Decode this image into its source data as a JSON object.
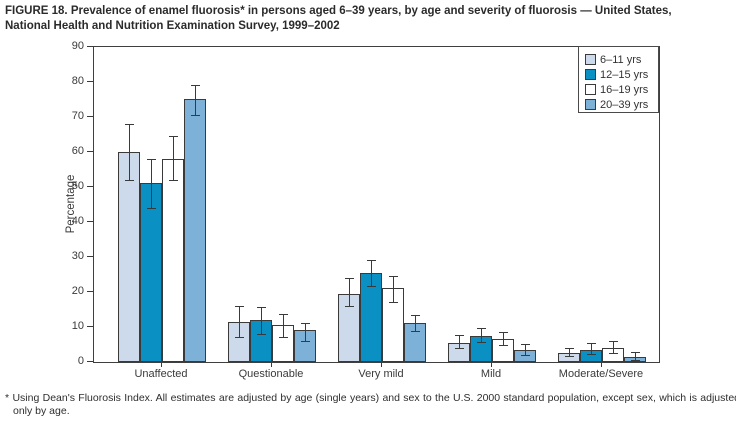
{
  "header": {
    "title_line1": "FIGURE 18. Prevalence of enamel fluorosis* in persons aged 6–39 years, by age and severity of fluorosis — United States,",
    "title_line2": "National Health and Nutrition Examination Survey, 1999–2002"
  },
  "chart_data": {
    "type": "bar",
    "title": "FIGURE 18. Prevalence of enamel fluorosis* in persons aged 6–39 years, by age and severity of fluorosis — United States, National Health and Nutrition Examination Survey, 1999–2002",
    "categories": [
      "Unaffected",
      "Questionable",
      "Very mild",
      "Mild",
      "Moderate/Severe"
    ],
    "series": [
      {
        "name": "6–11 yrs",
        "color": "#ccdaec",
        "values": [
          60,
          11.5,
          19.5,
          5.5,
          2.5
        ],
        "err_low": [
          52,
          7,
          16,
          4,
          1.5
        ],
        "err_high": [
          68,
          16,
          24,
          7.5,
          4
        ]
      },
      {
        "name": "12–15 yrs",
        "color": "#0a90c2",
        "values": [
          51,
          12,
          25.5,
          7.5,
          3.4
        ],
        "err_low": [
          44,
          8,
          21.5,
          5.7,
          2.1
        ],
        "err_high": [
          58,
          15.5,
          29,
          9.5,
          5.2
        ]
      },
      {
        "name": "16–19 yrs",
        "color": "#ffffff",
        "values": [
          58,
          10.5,
          21,
          6.5,
          4
        ],
        "err_low": [
          52,
          7,
          17,
          4.6,
          2.4
        ],
        "err_high": [
          64.5,
          13.5,
          24.5,
          8.3,
          6
        ]
      },
      {
        "name": "20–39 yrs",
        "color": "#7db1d7",
        "values": [
          75,
          9,
          11,
          3.3,
          1.5
        ],
        "err_low": [
          70.5,
          6,
          8.7,
          2,
          0.5
        ],
        "err_high": [
          79,
          11,
          13.3,
          5,
          2.7
        ]
      }
    ],
    "xlabel": "",
    "ylabel": "Percentage",
    "ylim": [
      0,
      90
    ],
    "ytick_step": 10,
    "grid": false,
    "legend_position": "top-right",
    "error_bars": true,
    "axis_color": "#3f3f3f",
    "bar_border_color": "#3a3a3a"
  },
  "footnote": {
    "marker": "*",
    "text": "Using Dean's Fluorosis Index. All estimates are adjusted by age (single years) and sex to the U.S. 2000 standard population, except sex, which is adjusted only by age."
  }
}
